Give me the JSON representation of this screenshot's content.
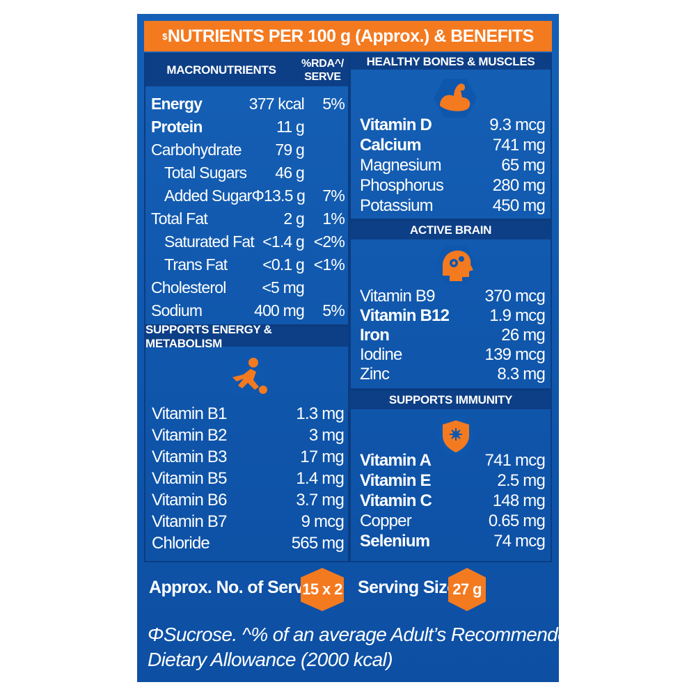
{
  "banner": {
    "prefix": "$",
    "title": "NUTRIENTS PER 100 g (Approx.) & BENEFITS"
  },
  "macro": {
    "header": "MACRONUTRIENTS",
    "rda_line1": "%RDA^/",
    "rda_line2": "SERVE",
    "rows": [
      {
        "name": "Energy",
        "value": "377 kcal",
        "rda": "5%"
      },
      {
        "name": "Protein",
        "value": "11 g",
        "rda": ""
      },
      {
        "name": "Carbohydrate",
        "value": "79 g",
        "rda": ""
      },
      {
        "name": "Total Sugars",
        "value": "46 g",
        "rda": ""
      },
      {
        "name": "Added SugarΦ",
        "value": "13.5 g",
        "rda": "7%"
      },
      {
        "name": "Total Fat",
        "value": "2 g",
        "rda": "1%"
      },
      {
        "name": "Saturated Fat",
        "value": "<1.4 g",
        "rda": "<2%"
      },
      {
        "name": "Trans Fat",
        "value": "<0.1 g",
        "rda": "<1%"
      },
      {
        "name": "Cholesterol",
        "value": "<5 mg",
        "rda": ""
      },
      {
        "name": "Sodium",
        "value": "400 mg",
        "rda": "5%"
      }
    ]
  },
  "energy": {
    "header": "SUPPORTS ENERGY & METABOLISM",
    "rows": [
      {
        "name": "Vitamin B1",
        "value": "1.3 mg"
      },
      {
        "name": "Vitamin B2",
        "value": "3 mg"
      },
      {
        "name": "Vitamin B3",
        "value": "17 mg"
      },
      {
        "name": "Vitamin B5",
        "value": "1.4 mg"
      },
      {
        "name": "Vitamin B6",
        "value": "3.7 mg"
      },
      {
        "name": "Vitamin B7",
        "value": "9 mcg"
      },
      {
        "name": "Chloride",
        "value": "565 mg"
      }
    ]
  },
  "bones": {
    "header": "HEALTHY BONES & MUSCLES",
    "rows": [
      {
        "name": "Vitamin D",
        "value": "9.3 mcg"
      },
      {
        "name": "Calcium",
        "value": "741 mg"
      },
      {
        "name": "Magnesium",
        "value": "65 mg"
      },
      {
        "name": "Phosphorus",
        "value": "280 mg"
      },
      {
        "name": "Potassium",
        "value": "450 mg"
      }
    ]
  },
  "brain": {
    "header": "ACTIVE BRAIN",
    "rows": [
      {
        "name": "Vitamin B9",
        "value": "370 mcg"
      },
      {
        "name": "Vitamin B12",
        "value": "1.9 mcg"
      },
      {
        "name": "Iron",
        "value": "26 mg"
      },
      {
        "name": "Iodine",
        "value": "139 mcg"
      },
      {
        "name": "Zinc",
        "value": "8.3 mg"
      }
    ]
  },
  "immunity": {
    "header": "SUPPORTS IMMUNITY",
    "rows": [
      {
        "name": "Vitamin A",
        "value": "741 mcg"
      },
      {
        "name": "Vitamin E",
        "value": "2.5 mg"
      },
      {
        "name": "Vitamin C",
        "value": "148 mg"
      },
      {
        "name": "Copper",
        "value": "0.65 mg"
      },
      {
        "name": "Selenium",
        "value": "74 mcg"
      }
    ]
  },
  "serves": {
    "label": "Approx. No. of Serves",
    "value": "15 x 2"
  },
  "serving": {
    "label": "Serving Size",
    "value": "27 g"
  },
  "footnote": {
    "line1": "ΦSucrose. ^% of an average Adult’s Recommended",
    "line2": "Dietary Allowance (2000 kcal)"
  },
  "colors": {
    "accent": "#f47a20",
    "panel": "#1560b6",
    "header": "#0d3f86"
  },
  "icons": [
    "flexed-arm-icon",
    "brain-gears-icon",
    "player-kicking-ball-icon",
    "shield-virus-icon"
  ]
}
